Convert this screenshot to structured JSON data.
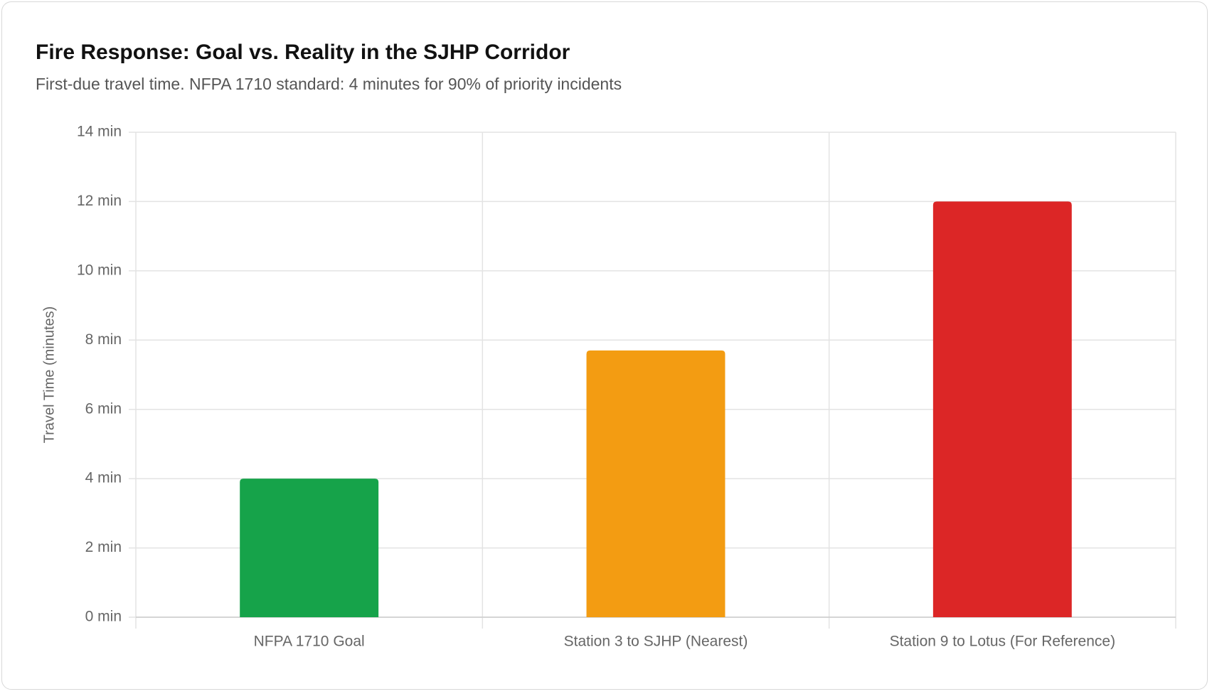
{
  "chart_data": {
    "type": "bar",
    "title": "Fire Response: Goal vs. Reality in the SJHP Corridor",
    "subtitle": "First-due travel time. NFPA 1710 standard: 4 minutes for 90% of priority incidents",
    "y_label": "Travel Time (minutes)",
    "categories": [
      "NFPA 1710 Goal",
      "Station 3 to SJHP (Nearest)",
      "Station 9 to Lotus (For Reference)"
    ],
    "values": [
      4,
      7.7,
      12
    ],
    "colors": [
      "#16a34a",
      "#f39c12",
      "#dc2626"
    ],
    "ylim": [
      0,
      14
    ],
    "yticks": [
      {
        "value": 0,
        "label": "0 min"
      },
      {
        "value": 2,
        "label": "2 min"
      },
      {
        "value": 4,
        "label": "4 min"
      },
      {
        "value": 6,
        "label": "6 min"
      },
      {
        "value": 8,
        "label": "8 min"
      },
      {
        "value": 10,
        "label": "10 min"
      },
      {
        "value": 12,
        "label": "12 min"
      },
      {
        "value": 14,
        "label": "14 min"
      }
    ],
    "grid": true
  }
}
